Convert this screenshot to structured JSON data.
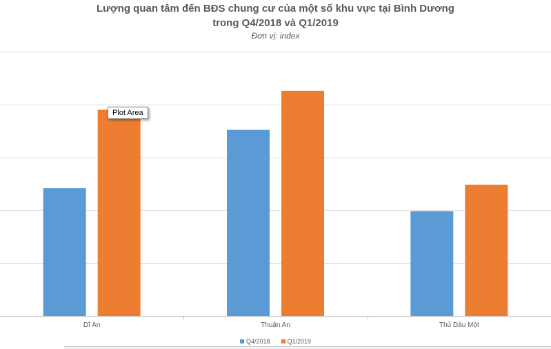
{
  "chart_data": {
    "type": "bar",
    "title": "Lượng quan tâm đến BĐS chung cư của một số khu vực tại Bình Dương",
    "title_line2": "trong Q4/2018 và Q1/2019",
    "subtitle": "Đơn vị: index",
    "categories": [
      "Dĩ An",
      "Thuận An",
      "Thủ Dầu Một"
    ],
    "series": [
      {
        "name": "Q4/2018",
        "color": "#5B9BD5",
        "values": [
          1.21,
          1.76,
          0.99
        ]
      },
      {
        "name": "Q1/2019",
        "color": "#ED7D31",
        "values": [
          1.95,
          2.13,
          1.24
        ]
      }
    ],
    "ylim": [
      0,
      2.5
    ],
    "ytick_step": 0.5,
    "y_tick_labels_visible": false,
    "grid": true,
    "legend_position": "bottom",
    "xlabel": "",
    "ylabel": ""
  },
  "tooltip": {
    "text": "Plot Area"
  }
}
